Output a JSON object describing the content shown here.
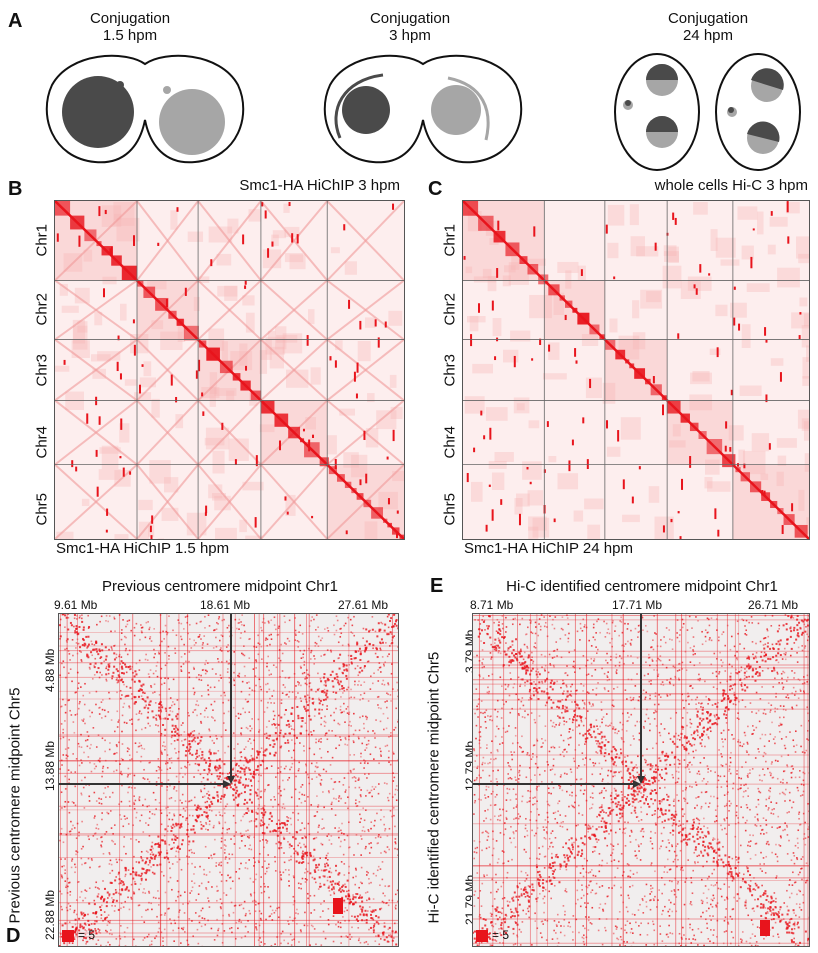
{
  "panelA": {
    "letter": "A",
    "stages": [
      {
        "title": "Conjugation",
        "time": "1.5 hpm"
      },
      {
        "title": "Conjugation",
        "time": "3 hpm"
      },
      {
        "title": "Conjugation",
        "time": "24 hpm"
      }
    ]
  },
  "panelB": {
    "letter": "B",
    "top_title": "Smc1-HA HiChIP 3 hpm",
    "bottom_title": "Smc1-HA HiChIP 1.5 hpm",
    "chromosomes": [
      "Chr1",
      "Chr2",
      "Chr3",
      "Chr4",
      "Chr5"
    ]
  },
  "panelC": {
    "letter": "C",
    "top_title": "whole cells Hi-C 3 hpm",
    "bottom_title": "Smc1-HA HiChIP 24 hpm",
    "chromosomes": [
      "Chr1",
      "Chr2",
      "Chr3",
      "Chr4",
      "Chr5"
    ]
  },
  "panelD": {
    "letter": "D",
    "title": "Previous centromere midpoint Chr1",
    "ylabel": "Previous centromere midpoint Chr5",
    "xticks": [
      "9.61 Mb",
      "18.61 Mb",
      "27.61 Mb"
    ],
    "yticks": [
      "4.88 Mb",
      "13.88 Mb",
      "22.88 Mb"
    ],
    "scale_label": "= 5"
  },
  "panelE": {
    "letter": "E",
    "title": "Hi-C identified centromere midpoint Chr1",
    "ylabel": "Hi-C identified centromere midpoint Chr5",
    "xticks": [
      "8.71 Mb",
      "17.71 Mb",
      "26.71 Mb"
    ],
    "yticks": [
      "3.79 Mb",
      "12.79 Mb",
      "21.79 Mb"
    ],
    "scale_label": "= 5"
  },
  "colors": {
    "heat": "#e8141c",
    "nucleus_dark": "#4a4a4a",
    "nucleus_light": "#a6a6a6",
    "arrow": "#333333"
  }
}
